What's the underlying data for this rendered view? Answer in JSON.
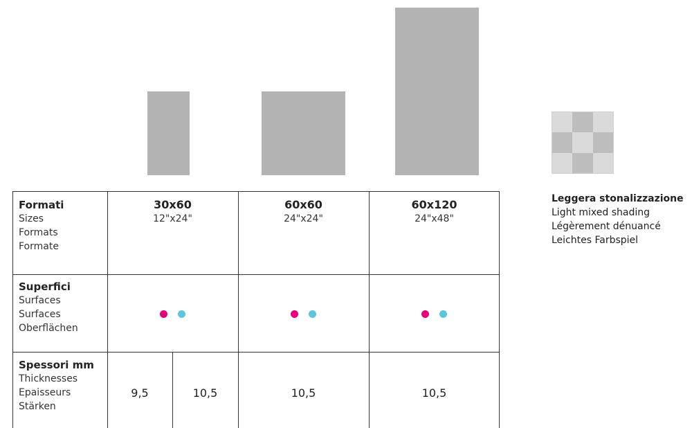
{
  "colors": {
    "tile": "#b3b3b3",
    "dot_magenta": "#e6007e",
    "dot_cyan": "#5bc5de"
  },
  "shading": {
    "title": "Leggera stonalizzazione",
    "lines": [
      "Light mixed shading",
      "Légèrement dénuancé",
      "Leichtes Farbspiel"
    ]
  },
  "rows": {
    "sizes": {
      "title": "Formati",
      "lines": [
        "Sizes",
        "Formats",
        "Formate"
      ]
    },
    "surfaces": {
      "title": "Superfici",
      "lines": [
        "Surfaces",
        "Surfaces",
        "Oberflächen"
      ]
    },
    "thickness": {
      "title": "Spessori mm",
      "lines": [
        "Thicknesses",
        "Epaisseurs",
        "Stärken"
      ]
    }
  },
  "columns": [
    {
      "size": "30x60",
      "inches": "12\"x24\"",
      "thickness": [
        "9,5",
        "10,5"
      ],
      "surfaces": [
        "magenta",
        "cyan"
      ]
    },
    {
      "size": "60x60",
      "inches": "24\"x24\"",
      "thickness": [
        "10,5"
      ],
      "surfaces": [
        "magenta",
        "cyan"
      ]
    },
    {
      "size": "60x120",
      "inches": "24\"x48\"",
      "thickness": [
        "10,5"
      ],
      "surfaces": [
        "magenta",
        "cyan"
      ]
    }
  ]
}
